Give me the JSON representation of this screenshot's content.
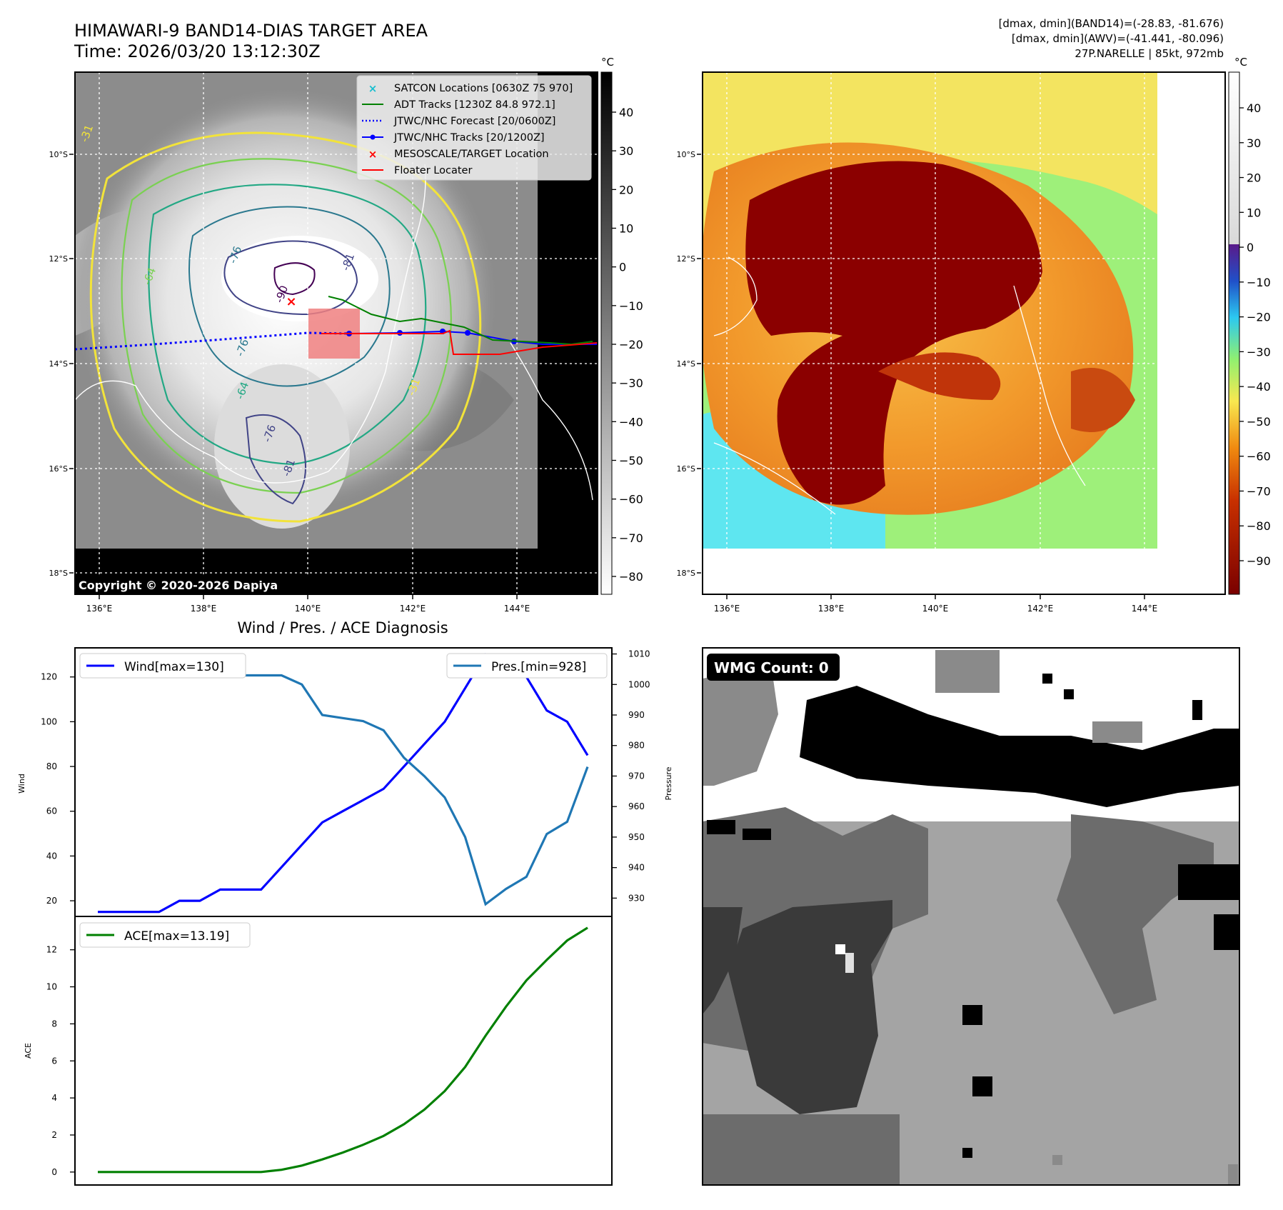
{
  "header": {
    "title_line1": "HIMAWARI-9 BAND14-DIAS TARGET AREA",
    "title_line2": "Time: 2026/03/20 13:12:30Z",
    "info_line1": "[dmax, dmin](BAND14)=(-28.83, -81.676)",
    "info_line2": "[dmax, dmin](AWV)=(-41.441, -80.096)",
    "info_line3": "27P.NARELLE | 85kt, 972mb"
  },
  "map": {
    "lat_labels": [
      "10°S",
      "12°S",
      "14°S",
      "16°S",
      "18°S"
    ],
    "lon_labels": [
      "136°E",
      "138°E",
      "140°E",
      "142°E",
      "144°E"
    ],
    "copyright": "Copyright © 2020-2026 Dapiya",
    "contour_labels": [
      "-31",
      "-64",
      "-76",
      "-81",
      "-90",
      "-76",
      "-64",
      "-76",
      "-81",
      "-31"
    ],
    "legend": [
      {
        "label": "SATCON Locations [0630Z 75 970]",
        "marker": "x",
        "color": "#17becf"
      },
      {
        "label": "ADT Tracks [1230Z 84.8 972.1]",
        "marker": "line",
        "color": "#008000"
      },
      {
        "label": "JTWC/NHC Forecast [20/0600Z]",
        "marker": "dotted",
        "color": "#0000ff"
      },
      {
        "label": "JTWC/NHC Tracks [20/1200Z]",
        "marker": "line-dot",
        "color": "#0000ff"
      },
      {
        "label": "MESOSCALE/TARGET Location",
        "marker": "x",
        "color": "#ff0000"
      },
      {
        "label": "Floater Locater",
        "marker": "line",
        "color": "#ff0000"
      }
    ]
  },
  "colorbar_gray": {
    "unit": "°C",
    "ticks": [
      "40",
      "30",
      "20",
      "10",
      "0",
      "−10",
      "−20",
      "−30",
      "−40",
      "−50",
      "−60",
      "−70",
      "−80"
    ]
  },
  "colorbar_color": {
    "unit": "°C",
    "ticks": [
      "40",
      "30",
      "20",
      "10",
      "0",
      "−10",
      "−20",
      "−30",
      "−40",
      "−50",
      "−60",
      "−70",
      "−80",
      "−90"
    ]
  },
  "wmg": {
    "label": "WMG Count: 0"
  },
  "chart_data": [
    {
      "type": "line",
      "title": "Wind / Pres. / ACE Diagnosis",
      "ylabel": "Wind",
      "ylabel_right": "Pressure",
      "ylim": [
        13,
        133
      ],
      "ylim_right": [
        924,
        1012
      ],
      "yticks": [
        "20",
        "40",
        "60",
        "80",
        "100",
        "120"
      ],
      "yticks_right": [
        "930",
        "940",
        "950",
        "960",
        "970",
        "980",
        "990",
        "1000",
        "1010"
      ],
      "legend_left": "Wind[max=130]",
      "legend_right": "Pres.[min=928]",
      "series": [
        {
          "name": "Wind[max=130]",
          "color": "#0000ff",
          "axis": "left",
          "values": [
            15,
            15,
            15,
            15,
            20,
            20,
            25,
            25,
            25,
            35,
            45,
            55,
            60,
            65,
            70,
            80,
            90,
            100,
            115,
            130,
            125,
            120,
            105,
            100,
            85
          ]
        },
        {
          "name": "Pres.[min=928]",
          "color": "#1f77b4",
          "axis": "right",
          "values": [
            1009,
            1009,
            1009,
            1004,
            1005,
            1004,
            1003,
            1003,
            1003,
            1003,
            1000,
            990,
            989,
            988,
            985,
            976,
            970,
            963,
            950,
            928,
            933,
            937,
            951,
            955,
            973
          ]
        }
      ]
    },
    {
      "type": "line",
      "ylabel": "ACE",
      "ylim": [
        -0.7,
        13.8
      ],
      "yticks": [
        "0",
        "2",
        "4",
        "6",
        "8",
        "10",
        "12"
      ],
      "legend_left": "ACE[max=13.19]",
      "series": [
        {
          "name": "ACE[max=13.19]",
          "color": "#008000",
          "axis": "left",
          "values": [
            0,
            0,
            0,
            0,
            0,
            0,
            0,
            0,
            0,
            0.12,
            0.35,
            0.68,
            1.05,
            1.47,
            1.95,
            2.58,
            3.37,
            4.37,
            5.67,
            7.36,
            8.93,
            10.35,
            11.45,
            12.5,
            13.19
          ]
        }
      ]
    }
  ]
}
